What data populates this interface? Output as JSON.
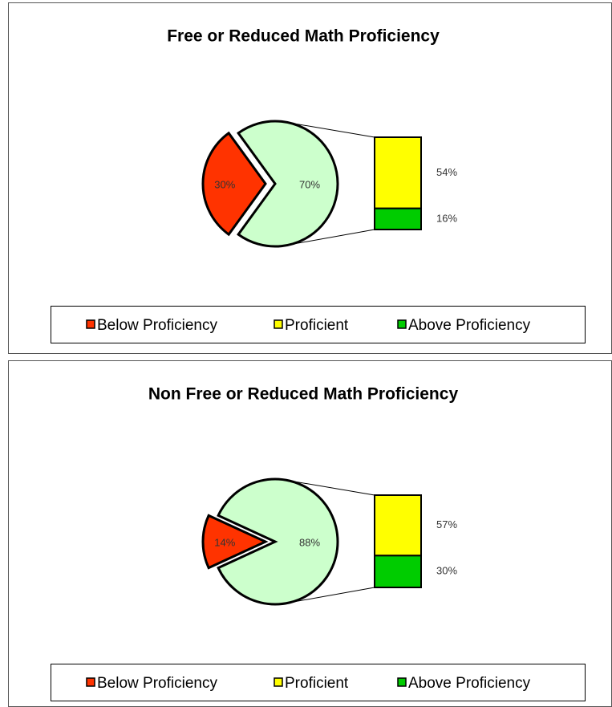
{
  "chart_data": [
    {
      "type": "bar_of_pie",
      "title": "Free or Reduced Math Proficiency",
      "slices": [
        {
          "name": "Below Proficiency",
          "value": 30,
          "value_label": "30%",
          "color": "#ff3300"
        }
      ],
      "other_slice": {
        "value": 70,
        "value_label": "70%",
        "color": "#ccffcc"
      },
      "bar": [
        {
          "name": "Proficient",
          "value": 54,
          "value_label": "54%",
          "color": "#ffff00"
        },
        {
          "name": "Above Proficiency",
          "value": 16,
          "value_label": "16%",
          "color": "#00cc00"
        }
      ]
    },
    {
      "type": "bar_of_pie",
      "title": "Non Free or Reduced Math Proficiency",
      "slices": [
        {
          "name": "Below Proficiency",
          "value": 14,
          "value_label": "14%",
          "color": "#ff3300"
        }
      ],
      "other_slice": {
        "value": 88,
        "value_label": "88%",
        "color": "#ccffcc"
      },
      "bar": [
        {
          "name": "Proficient",
          "value": 57,
          "value_label": "57%",
          "color": "#ffff00"
        },
        {
          "name": "Above Proficiency",
          "value": 30,
          "value_label": "30%",
          "color": "#00cc00"
        }
      ]
    }
  ]
}
